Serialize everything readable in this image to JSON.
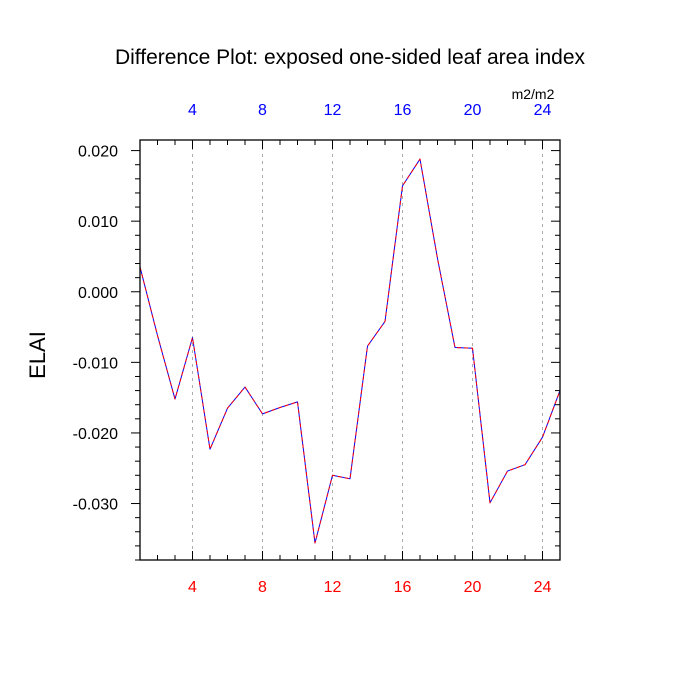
{
  "chart_data": {
    "type": "line",
    "title": "Difference Plot: exposed one-sided leaf area index",
    "units": "m2/m2",
    "ylabel": "ELAI",
    "xlabel": "",
    "xlim": [
      1,
      25
    ],
    "ylim": [
      -0.038,
      0.0215
    ],
    "x_ticks_bottom": [
      4,
      8,
      12,
      16,
      20,
      24
    ],
    "x_ticks_top": [
      4,
      8,
      12,
      16,
      20,
      24
    ],
    "x_minor_ticks": [
      1,
      2,
      3,
      5,
      6,
      7,
      9,
      10,
      11,
      13,
      14,
      15,
      17,
      18,
      19,
      21,
      22,
      23,
      25
    ],
    "y_major_ticks": [
      {
        "value": 0.02,
        "label": "0.020"
      },
      {
        "value": 0.01,
        "label": "0.010"
      },
      {
        "value": 0.0,
        "label": "0.000"
      },
      {
        "value": -0.01,
        "label": "-0.010"
      },
      {
        "value": -0.02,
        "label": "-0.020"
      },
      {
        "value": -0.03,
        "label": "-0.030"
      }
    ],
    "grid": {
      "x": "dashed-vertical",
      "y": "off"
    },
    "colors": {
      "bottom_tick_labels": "#ff0000",
      "top_tick_labels": "#0000ff",
      "series_a": "#0000ff",
      "series_b": "#ff0000",
      "axis": "#000000",
      "grid": "#999999"
    },
    "series": [
      {
        "style": "solid",
        "color": "#0000ff",
        "x": [
          1,
          2,
          3,
          4,
          5,
          6,
          7,
          8,
          9,
          10,
          11,
          12,
          13,
          14,
          15,
          16,
          17,
          18,
          19,
          20,
          21,
          22,
          23,
          24,
          25
        ],
        "values": [
          0.0035,
          -0.0062,
          -0.0152,
          -0.0065,
          -0.0223,
          -0.0165,
          -0.0135,
          -0.0173,
          -0.0164,
          -0.0156,
          -0.0356,
          -0.026,
          -0.0265,
          -0.0077,
          -0.0042,
          0.015,
          0.0188,
          0.0047,
          -0.0079,
          -0.008,
          -0.0299,
          -0.0254,
          -0.0245,
          -0.0206,
          -0.014
        ]
      },
      {
        "style": "dashed",
        "color": "#ff0000",
        "x": [
          1,
          2,
          3,
          4,
          5,
          6,
          7,
          8,
          9,
          10,
          11,
          12,
          13,
          14,
          15,
          16,
          17,
          18,
          19,
          20,
          21,
          22,
          23,
          24,
          25
        ],
        "values": [
          0.0035,
          -0.0062,
          -0.0152,
          -0.0065,
          -0.0223,
          -0.0165,
          -0.0135,
          -0.0173,
          -0.0164,
          -0.0156,
          -0.0356,
          -0.026,
          -0.0265,
          -0.0077,
          -0.0042,
          0.015,
          0.0188,
          0.0047,
          -0.0079,
          -0.008,
          -0.0299,
          -0.0254,
          -0.0245,
          -0.0206,
          -0.014
        ]
      }
    ]
  }
}
